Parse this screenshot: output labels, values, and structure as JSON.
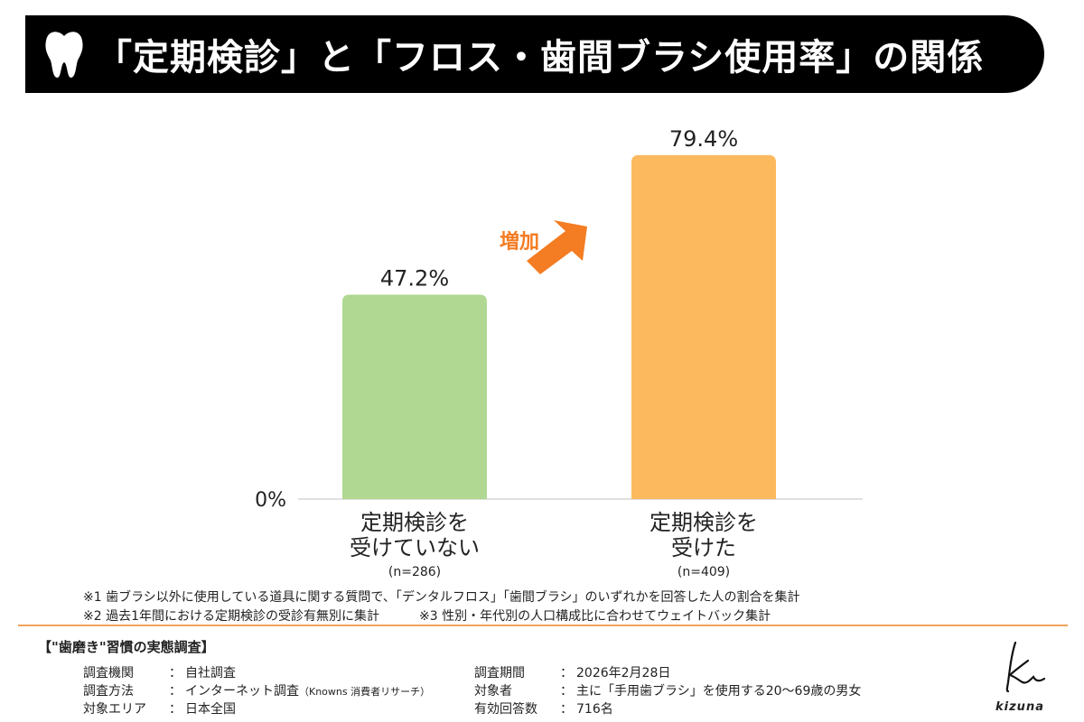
{
  "title": "「定期検診」と「フロス・歯間ブラシ使用率」の関係",
  "chart_data": {
    "type": "bar",
    "categories": [
      {
        "line1": "定期検診を",
        "line2": "受けていない",
        "n": "(n=286)"
      },
      {
        "line1": "定期検診を",
        "line2": "受けた",
        "n": "(n=409)"
      }
    ],
    "values": [
      47.2,
      79.4
    ],
    "value_labels": [
      "47.2%",
      "79.4%"
    ],
    "colors": [
      "#b1d892",
      "#fdb95e"
    ],
    "ylim": [
      0,
      100
    ],
    "y_tick_label": "0%",
    "annotation": {
      "text": "増加",
      "color": "#f47c22"
    }
  },
  "footnotes": {
    "note1": "※1 歯ブラシ以外に使用している道具に関する質問で、「デンタルフロス」「歯間ブラシ」のいずれかを回答した人の割合を集計",
    "note2": "※2 過去1年間における定期検診の受診有無別に集計",
    "note3": "※3 性別・年代別の人口構成比に合わせてウェイトバック集計"
  },
  "survey": {
    "heading": "【\"歯磨き\"習慣の実態調査】",
    "left": [
      {
        "key": "調査機関",
        "value": "自社調査",
        "note": ""
      },
      {
        "key": "調査方法",
        "value": "インターネット調査",
        "note": "（Knowns 消費者リサーチ）"
      },
      {
        "key": "対象エリア",
        "value": "日本全国",
        "note": ""
      }
    ],
    "right": [
      {
        "key": "調査期間",
        "value": "2026年2月28日",
        "note": ""
      },
      {
        "key": "対象者",
        "value": "主に「手用歯ブラシ」を使用する20〜69歳の男女",
        "note": ""
      },
      {
        "key": "有効回答数",
        "value": "716名",
        "note": ""
      }
    ],
    "separator": "："
  },
  "logo": {
    "text": "kizuna"
  }
}
